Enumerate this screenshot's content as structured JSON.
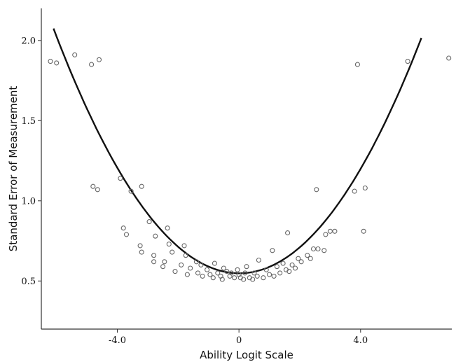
{
  "chart_data": {
    "type": "scatter",
    "title": "",
    "xlabel": "Ability Logit Scale",
    "ylabel": "Standard Error of Measurement",
    "xlim": [
      -6.5,
      7.0
    ],
    "ylim": [
      0.2,
      2.2
    ],
    "x_ticks": [
      {
        "value": -4.0,
        "label": "-4.0"
      },
      {
        "value": 0,
        "label": "0"
      },
      {
        "value": 4.0,
        "label": "4.0"
      }
    ],
    "y_ticks": [
      {
        "value": 0.5,
        "label": "0.5"
      },
      {
        "value": 1.0,
        "label": "1.0"
      },
      {
        "value": 1.5,
        "label": "1.5"
      },
      {
        "value": 2.0,
        "label": "2.0"
      }
    ],
    "grid": false,
    "colors": {
      "points": "#666666",
      "fit_line": "#111111",
      "axes": "#333333"
    },
    "points": [
      [
        -6.2,
        1.87
      ],
      [
        -6.0,
        1.86
      ],
      [
        -5.4,
        1.91
      ],
      [
        -4.85,
        1.85
      ],
      [
        -4.6,
        1.88
      ],
      [
        -4.8,
        1.09
      ],
      [
        -4.65,
        1.07
      ],
      [
        -3.9,
        1.14
      ],
      [
        -3.55,
        1.06
      ],
      [
        -3.2,
        1.09
      ],
      [
        -3.8,
        0.83
      ],
      [
        -3.7,
        0.79
      ],
      [
        -2.95,
        0.87
      ],
      [
        -2.75,
        0.78
      ],
      [
        -2.35,
        0.83
      ],
      [
        -3.25,
        0.72
      ],
      [
        -3.2,
        0.68
      ],
      [
        -2.3,
        0.73
      ],
      [
        -2.2,
        0.68
      ],
      [
        -1.8,
        0.72
      ],
      [
        -2.8,
        0.66
      ],
      [
        -2.8,
        0.62
      ],
      [
        -2.5,
        0.59
      ],
      [
        -2.45,
        0.62
      ],
      [
        -2.1,
        0.56
      ],
      [
        -1.9,
        0.6
      ],
      [
        -1.75,
        0.66
      ],
      [
        -1.7,
        0.54
      ],
      [
        -1.6,
        0.58
      ],
      [
        -1.4,
        0.62
      ],
      [
        -1.35,
        0.55
      ],
      [
        -1.25,
        0.6
      ],
      [
        -1.2,
        0.53
      ],
      [
        -1.05,
        0.57
      ],
      [
        -0.95,
        0.54
      ],
      [
        -0.85,
        0.52
      ],
      [
        -0.8,
        0.61
      ],
      [
        -0.7,
        0.55
      ],
      [
        -0.6,
        0.53
      ],
      [
        -0.55,
        0.51
      ],
      [
        -0.5,
        0.58
      ],
      [
        -0.4,
        0.56
      ],
      [
        -0.3,
        0.53
      ],
      [
        -0.25,
        0.55
      ],
      [
        -0.15,
        0.52
      ],
      [
        -0.05,
        0.57
      ],
      [
        0.0,
        0.54
      ],
      [
        0.05,
        0.52
      ],
      [
        0.15,
        0.51
      ],
      [
        0.2,
        0.55
      ],
      [
        0.25,
        0.59
      ],
      [
        0.35,
        0.52
      ],
      [
        0.45,
        0.51
      ],
      [
        0.5,
        0.55
      ],
      [
        0.6,
        0.53
      ],
      [
        0.65,
        0.63
      ],
      [
        0.8,
        0.52
      ],
      [
        0.9,
        0.57
      ],
      [
        1.0,
        0.54
      ],
      [
        1.1,
        0.69
      ],
      [
        1.15,
        0.53
      ],
      [
        1.25,
        0.59
      ],
      [
        1.35,
        0.55
      ],
      [
        1.45,
        0.61
      ],
      [
        1.55,
        0.57
      ],
      [
        1.6,
        0.8
      ],
      [
        1.65,
        0.56
      ],
      [
        1.75,
        0.6
      ],
      [
        1.85,
        0.58
      ],
      [
        1.95,
        0.64
      ],
      [
        2.05,
        0.62
      ],
      [
        2.25,
        0.66
      ],
      [
        2.35,
        0.64
      ],
      [
        2.45,
        0.7
      ],
      [
        2.55,
        1.07
      ],
      [
        2.6,
        0.7
      ],
      [
        2.8,
        0.69
      ],
      [
        2.85,
        0.79
      ],
      [
        3.0,
        0.81
      ],
      [
        3.15,
        0.81
      ],
      [
        3.8,
        1.06
      ],
      [
        3.9,
        1.85
      ],
      [
        4.1,
        0.81
      ],
      [
        4.15,
        1.08
      ],
      [
        5.55,
        1.87
      ],
      [
        6.9,
        1.89
      ]
    ],
    "fit_line": {
      "type": "quadratic",
      "coefficients": {
        "a": 0.0409,
        "b": -0.0008,
        "c": 0.548
      },
      "x_range": [
        -6.1,
        6.0
      ]
    }
  }
}
